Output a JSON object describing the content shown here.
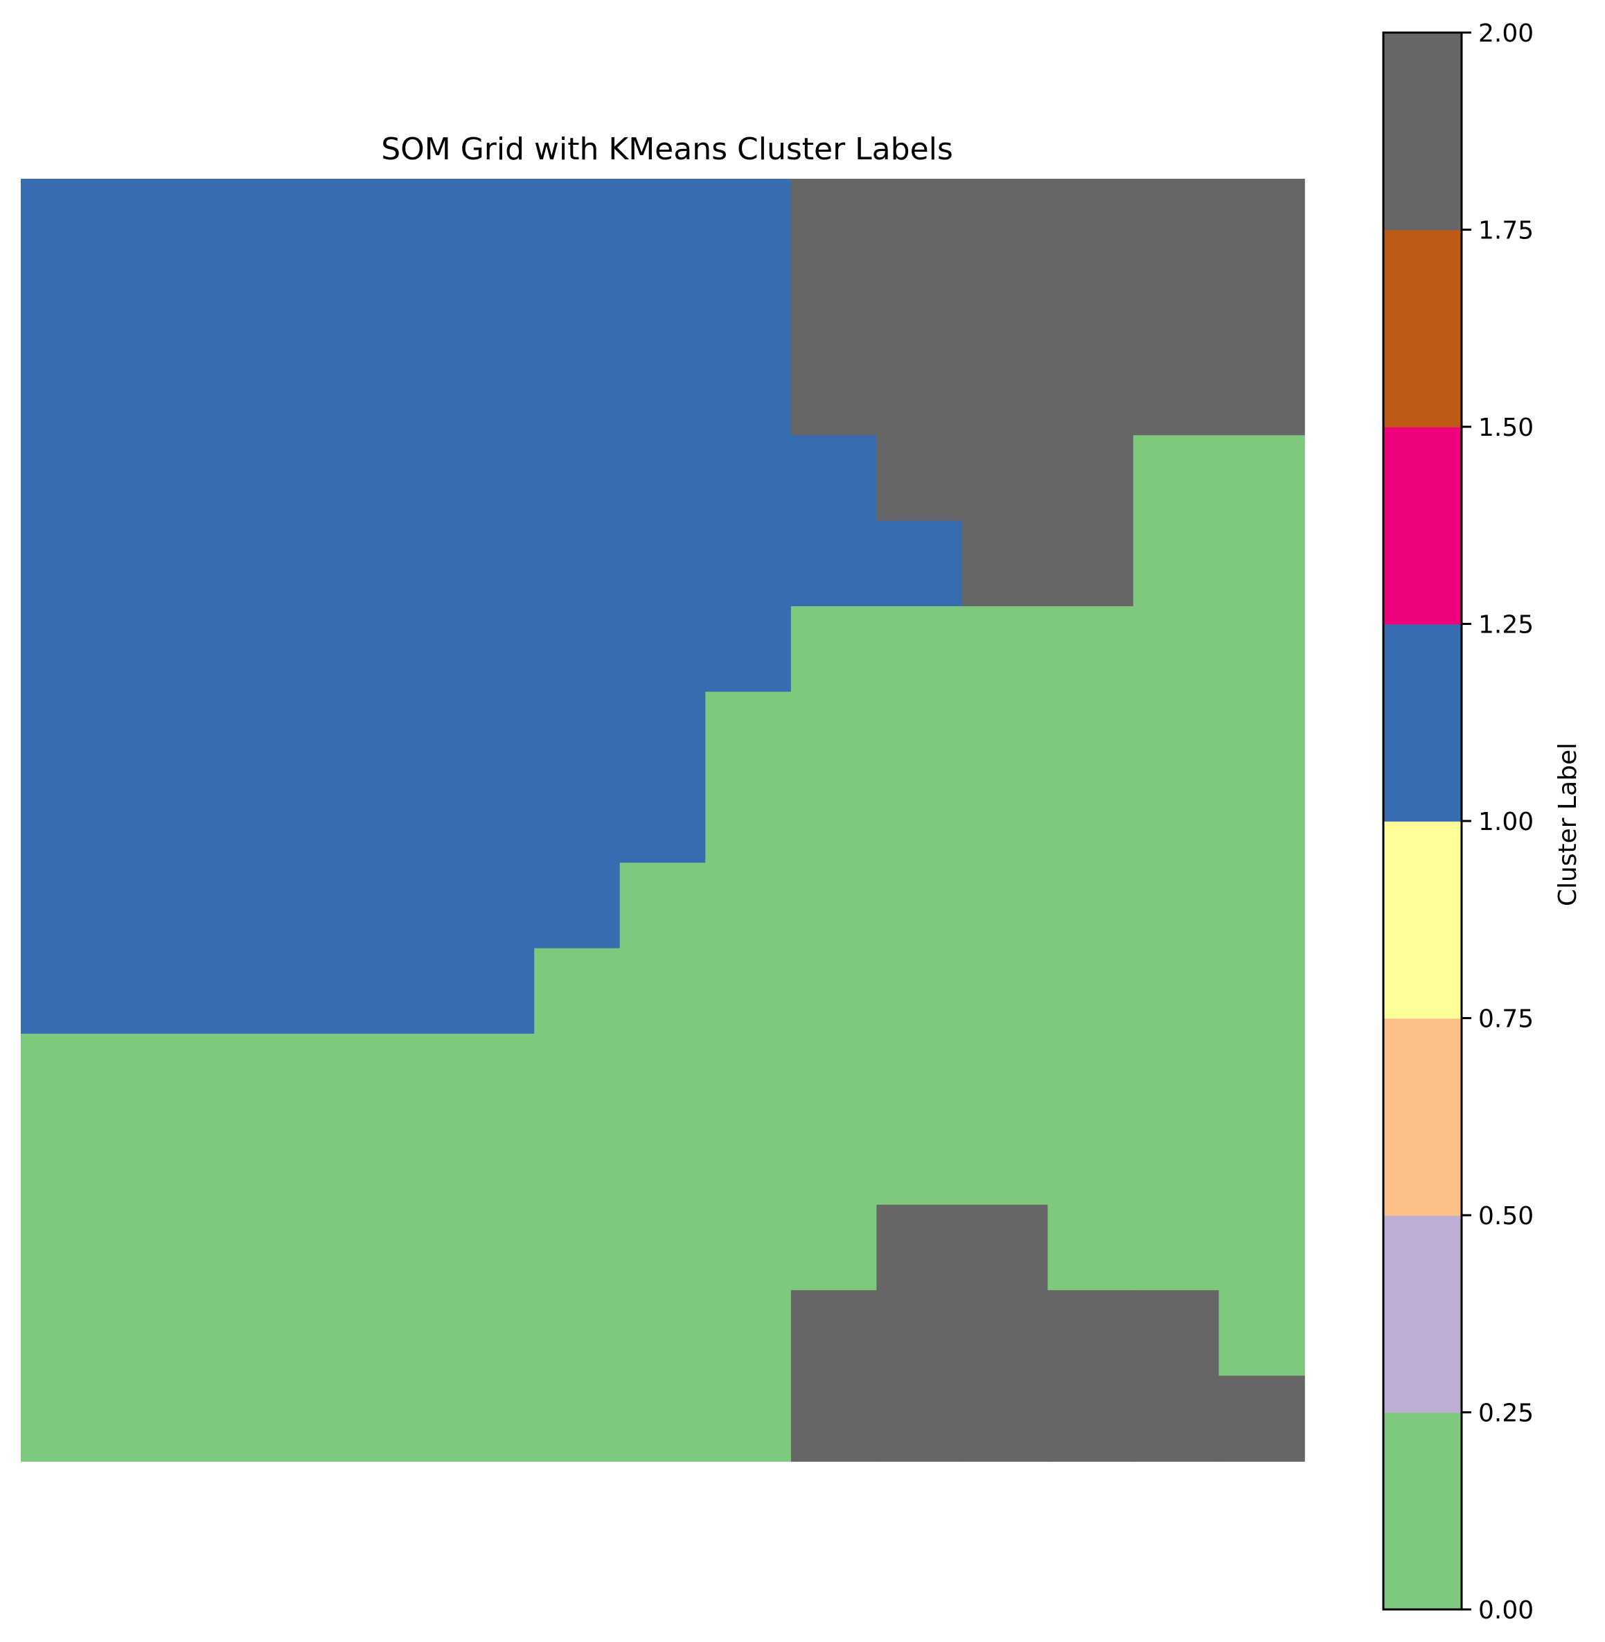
{
  "chart_data": {
    "type": "heatmap",
    "title": "SOM Grid with KMeans Cluster Labels",
    "grid": [
      [
        1,
        1,
        1,
        1,
        1,
        1,
        1,
        1,
        1,
        2,
        2,
        2,
        2,
        2,
        2
      ],
      [
        1,
        1,
        1,
        1,
        1,
        1,
        1,
        1,
        1,
        2,
        2,
        2,
        2,
        2,
        2
      ],
      [
        1,
        1,
        1,
        1,
        1,
        1,
        1,
        1,
        1,
        2,
        2,
        2,
        2,
        2,
        2
      ],
      [
        1,
        1,
        1,
        1,
        1,
        1,
        1,
        1,
        1,
        1,
        2,
        2,
        2,
        0,
        0
      ],
      [
        1,
        1,
        1,
        1,
        1,
        1,
        1,
        1,
        1,
        1,
        1,
        2,
        2,
        0,
        0
      ],
      [
        1,
        1,
        1,
        1,
        1,
        1,
        1,
        1,
        1,
        0,
        0,
        0,
        0,
        0,
        0
      ],
      [
        1,
        1,
        1,
        1,
        1,
        1,
        1,
        1,
        0,
        0,
        0,
        0,
        0,
        0,
        0
      ],
      [
        1,
        1,
        1,
        1,
        1,
        1,
        1,
        1,
        0,
        0,
        0,
        0,
        0,
        0,
        0
      ],
      [
        1,
        1,
        1,
        1,
        1,
        1,
        1,
        0,
        0,
        0,
        0,
        0,
        0,
        0,
        0
      ],
      [
        1,
        1,
        1,
        1,
        1,
        1,
        0,
        0,
        0,
        0,
        0,
        0,
        0,
        0,
        0
      ],
      [
        0,
        0,
        0,
        0,
        0,
        0,
        0,
        0,
        0,
        0,
        0,
        0,
        0,
        0,
        0
      ],
      [
        0,
        0,
        0,
        0,
        0,
        0,
        0,
        0,
        0,
        0,
        0,
        0,
        0,
        0,
        0
      ],
      [
        0,
        0,
        0,
        0,
        0,
        0,
        0,
        0,
        0,
        0,
        2,
        2,
        0,
        0,
        0
      ],
      [
        0,
        0,
        0,
        0,
        0,
        0,
        0,
        0,
        0,
        2,
        2,
        2,
        2,
        2,
        0
      ],
      [
        0,
        0,
        0,
        0,
        0,
        0,
        0,
        0,
        0,
        2,
        2,
        2,
        2,
        2,
        2
      ]
    ],
    "colorbar": {
      "label": "Cluster Label",
      "range": [
        0,
        2
      ],
      "ticks": [
        "0.00",
        "0.25",
        "0.50",
        "0.75",
        "1.00",
        "1.25",
        "1.50",
        "1.75",
        "2.00"
      ],
      "colors": [
        "#7fc97f",
        "#beaed4",
        "#fdc086",
        "#ffff99",
        "#386cb0",
        "#f0027f",
        "#bf5b17",
        "#666666"
      ]
    },
    "value_colors": {
      "0": "#7fc97f",
      "1": "#386cb0",
      "2": "#666666"
    }
  }
}
